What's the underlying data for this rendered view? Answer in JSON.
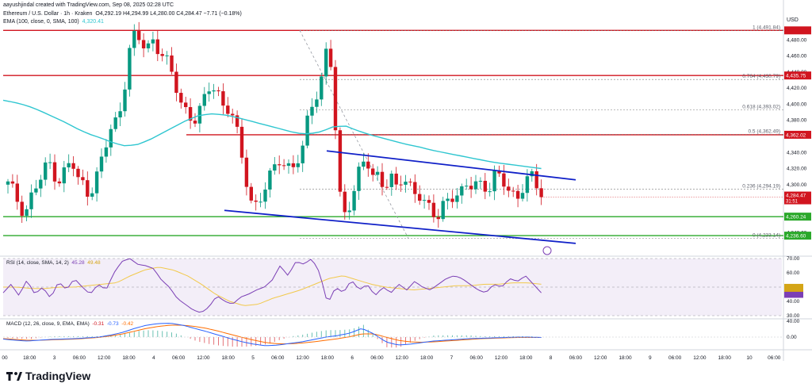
{
  "header": {
    "author_line": "aayushjindal created with TradingView.com, Sep 08, 2025 02:28 UTC",
    "symbol": "Ethereum / U.S. Dollar · 1h · Kraken",
    "ohlc": "O4,292.19  H4,294.99  L4,280.00  C4,284.47  −7.71 (−0.18%)",
    "ema_line": "EMA (100, close, 0, SMA, 100)",
    "ema_value": "4,320.41"
  },
  "currency": "USD",
  "brand": {
    "name": "TradingView",
    "logo_icon": "tradingview-logo-icon"
  },
  "colors": {
    "up": "#089981",
    "down": "#d1151f",
    "ema": "#2fc6d0",
    "trend": "#1020c8",
    "support": "#2aa82a",
    "resistance": "#d1151f",
    "fib": "#7a7a7a",
    "rsi": "#7b3fb5",
    "rsi_ma": "#f2c94c",
    "macd": "#2962ff",
    "signal": "#ff6d00"
  },
  "chart_data": [
    {
      "type": "candlestick",
      "title": "Ethereum / U.S. Dollar · 1h · Kraken",
      "ylim": [
        4216,
        4502
      ],
      "y_ticks": [
        4240,
        4260,
        4280,
        4300,
        4320,
        4340,
        4360,
        4380,
        4400,
        4420,
        4440,
        4460,
        4480
      ],
      "x_ticks": [
        "00",
        "18:00",
        "3",
        "06:00",
        "12:00",
        "18:00",
        "4",
        "06:00",
        "12:00",
        "18:00",
        "5",
        "06:00",
        "12:00",
        "18:00",
        "6",
        "06:00",
        "12:00",
        "18:00",
        "7",
        "06:00",
        "12:00",
        "18:00",
        "8",
        "06:00",
        "12:00",
        "18:00",
        "9",
        "06:00",
        "12:00",
        "18:00",
        "10",
        "06:00"
      ],
      "close_path": [
        4300,
        4290,
        4276,
        4265,
        4285,
        4300,
        4310,
        4330,
        4315,
        4305,
        4320,
        4330,
        4305,
        4300,
        4290,
        4305,
        4325,
        4350,
        4375,
        4380,
        4420,
        4470,
        4485,
        4475,
        4470,
        4480,
        4470,
        4460,
        4440,
        4420,
        4400,
        4390,
        4380,
        4390,
        4405,
        4425,
        4420,
        4400,
        4395,
        4380,
        4345,
        4310,
        4280,
        4275,
        4290,
        4305,
        4320,
        4335,
        4325,
        4320,
        4330,
        4345,
        4395,
        4410,
        4430,
        4470,
        4440,
        4290,
        4265,
        4280,
        4300,
        4330,
        4325,
        4305,
        4315,
        4300,
        4310,
        4295,
        4305,
        4300,
        4295,
        4290,
        4275,
        4265,
        4255,
        4275,
        4285,
        4290,
        4285,
        4295,
        4300,
        4305,
        4300,
        4295,
        4310,
        4305,
        4300,
        4290,
        4285,
        4300,
        4310,
        4300,
        4285
      ],
      "ema100_path": [
        4405,
        4402,
        4398,
        4392,
        4385,
        4378,
        4370,
        4363,
        4358,
        4352,
        4348,
        4350,
        4356,
        4364,
        4372,
        4380,
        4386,
        4388,
        4387,
        4384,
        4380,
        4376,
        4372,
        4368,
        4364,
        4363,
        4366,
        4372,
        4373,
        4367,
        4362,
        4358,
        4354,
        4350,
        4347,
        4343,
        4340,
        4337,
        4334,
        4331,
        4328,
        4326,
        4324,
        4322,
        4320
      ],
      "last_price_label": "4,284.47",
      "countdown_label": "31:51",
      "fibonacci": [
        {
          "ratio": "1",
          "price": "4,491.84"
        },
        {
          "ratio": "0.764",
          "price": "4,430.79"
        },
        {
          "ratio": "0.618",
          "price": "4,393.02"
        },
        {
          "ratio": "0.5",
          "price": "4,362.49"
        },
        {
          "ratio": "0.236",
          "price": "4,294.19"
        },
        {
          "ratio": "0",
          "price": "4,233.14"
        }
      ],
      "levels": [
        {
          "price": 4491.84,
          "label": "",
          "kind": "resistance"
        },
        {
          "price": 4435.75,
          "label": "4,435.75",
          "kind": "resistance"
        },
        {
          "price": 4362.02,
          "label": "4,362.02",
          "kind": "resistance"
        },
        {
          "price": 4260.24,
          "label": "4,260.24",
          "kind": "support"
        },
        {
          "price": 4236.6,
          "label": "4,236.60",
          "kind": "support"
        }
      ],
      "channel": {
        "upper": [
          [
            4342,
            4306
          ]
        ],
        "lower": [
          [
            4268,
            4227
          ]
        ]
      }
    },
    {
      "type": "line",
      "title": "RSI (14, close, SMA, 14, 2)",
      "value_labels": [
        "45.28",
        "49.48"
      ],
      "ylim": [
        30,
        70
      ],
      "y_ticks": [
        30.0,
        40.0,
        50.0,
        60.0,
        70.0
      ],
      "rsi_path": [
        46,
        52,
        44,
        55,
        45,
        50,
        42,
        54,
        48,
        56,
        50,
        45,
        52,
        48,
        60,
        68,
        70,
        66,
        65,
        63,
        55,
        50,
        42,
        38,
        34,
        32,
        36,
        44,
        40,
        38,
        43,
        45,
        48,
        50,
        55,
        65,
        58,
        68,
        66,
        70,
        60,
        38,
        50,
        46,
        55,
        48,
        52,
        44,
        50,
        46,
        52,
        48,
        54,
        50,
        48,
        52,
        56,
        58,
        56,
        52,
        48,
        46,
        52,
        50,
        56,
        54,
        58,
        52,
        46
      ],
      "rsi_ma_path": [
        50,
        50,
        49,
        49,
        50,
        50,
        51,
        52,
        53,
        58,
        62,
        64,
        62,
        58,
        52,
        45,
        40,
        37,
        38,
        42,
        45,
        48,
        52,
        56,
        58,
        55,
        52,
        50,
        49,
        48,
        49,
        50,
        51,
        51,
        52,
        52,
        53,
        53,
        52
      ]
    },
    {
      "type": "bar",
      "title": "MACD (12, 26, close, 9, EMA, EMA)",
      "value_labels": [
        "-0.31",
        "-0.73",
        "-0.42"
      ],
      "y_ticks": [
        0.0,
        40.0
      ],
      "y_tick_labels": [
        "0.00",
        "40.00"
      ],
      "macd_path": [
        -5,
        -8,
        -10,
        -8,
        -6,
        -5,
        -4,
        -2,
        0,
        5,
        12,
        22,
        30,
        34,
        35,
        30,
        22,
        14,
        5,
        -4,
        -12,
        -18,
        -22,
        -20,
        -16,
        -12,
        -6,
        0,
        4,
        10,
        22,
        8,
        -12,
        -20,
        -18,
        -14,
        -10,
        -8,
        -6,
        -4,
        -3,
        -2,
        -1,
        0,
        0,
        -1
      ],
      "signal_path": [
        -4,
        -6,
        -8,
        -8,
        -7,
        -6,
        -5,
        -3,
        -1,
        3,
        8,
        15,
        22,
        27,
        30,
        30,
        27,
        22,
        15,
        7,
        -1,
        -8,
        -14,
        -17,
        -17,
        -15,
        -12,
        -8,
        -4,
        1,
        8,
        8,
        0,
        -8,
        -12,
        -13,
        -12,
        -10,
        -8,
        -6,
        -4,
        -3,
        -2,
        -1,
        -1,
        -1
      ]
    }
  ]
}
